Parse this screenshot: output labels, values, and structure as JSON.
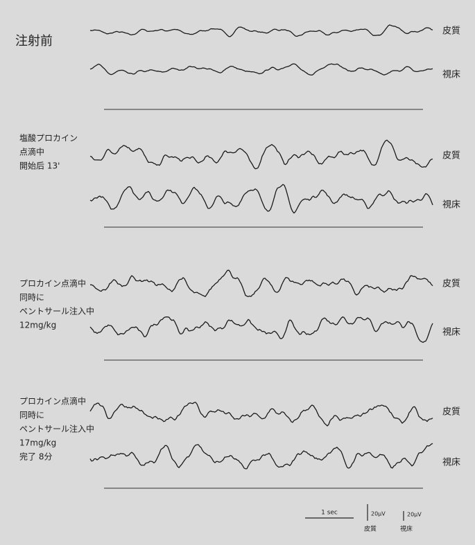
{
  "panels": [
    {
      "label": [
        "注射前"
      ],
      "traces": [
        "皮質",
        "視床"
      ]
    },
    {
      "label": [
        "塩酸プロカイン",
        "点滴中",
        "開始后 13'"
      ],
      "traces": [
        "皮質",
        "視床"
      ]
    },
    {
      "label": [
        "プロカイン点滴中",
        "同時に",
        "ペントサール注入中",
        "12mg/kg"
      ],
      "traces": [
        "皮質",
        "視床"
      ]
    },
    {
      "label": [
        "プロカイン点滴中",
        "同時に",
        "ペントサール注入中",
        "17mg/kg",
        "完了 8分"
      ],
      "traces": [
        "皮質",
        "視床"
      ]
    }
  ],
  "scale": {
    "time": "1 sec",
    "amplitude_cortex": "20μV",
    "cortex": "皮質",
    "amplitude_thalamus": "20μV",
    "thalamus": "視床"
  }
}
